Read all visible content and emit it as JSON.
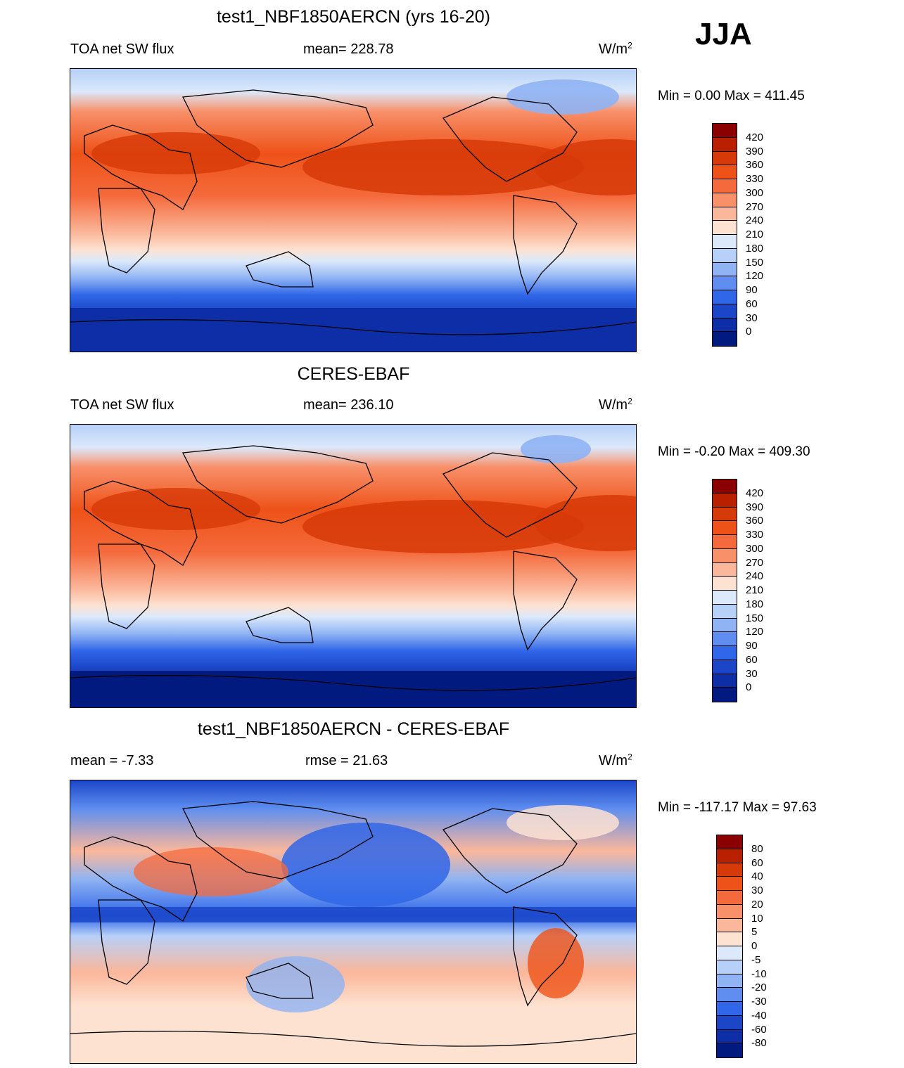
{
  "season": "JJA",
  "panels": [
    {
      "title": "test1_NBF1850AERCN (yrs 16-20)",
      "left": "TOA net SW flux",
      "center": "mean= 228.78",
      "units": "W/m",
      "units_sup": "2",
      "minmax": "Min =   0.00 Max = 411.45",
      "colorbar": {
        "labels": [
          "420",
          "390",
          "360",
          "330",
          "300",
          "270",
          "240",
          "210",
          "180",
          "150",
          "120",
          "90",
          "60",
          "30",
          "0"
        ],
        "colors": [
          "#8b0000",
          "#b82000",
          "#d63a08",
          "#ee5218",
          "#f46a3c",
          "#f8906a",
          "#fbb79a",
          "#fde2d2",
          "#dbe9fb",
          "#b7d0f8",
          "#8fb3f3",
          "#5f8ef0",
          "#3066e8",
          "#1b46c8",
          "#0d2ea6",
          "#001a80"
        ]
      }
    },
    {
      "title": "CERES-EBAF",
      "left": "TOA net SW flux",
      "center": "mean= 236.10",
      "units": "W/m",
      "units_sup": "2",
      "minmax": "Min =  -0.20 Max = 409.30",
      "colorbar": {
        "labels": [
          "420",
          "390",
          "360",
          "330",
          "300",
          "270",
          "240",
          "210",
          "180",
          "150",
          "120",
          "90",
          "60",
          "30",
          "0"
        ],
        "colors": [
          "#8b0000",
          "#b82000",
          "#d63a08",
          "#ee5218",
          "#f46a3c",
          "#f8906a",
          "#fbb79a",
          "#fde2d2",
          "#dbe9fb",
          "#b7d0f8",
          "#8fb3f3",
          "#5f8ef0",
          "#3066e8",
          "#1b46c8",
          "#0d2ea6",
          "#001a80"
        ]
      }
    },
    {
      "title": "test1_NBF1850AERCN - CERES-EBAF",
      "left": "mean =  -7.33",
      "center": "rmse =  21.63",
      "units": "W/m",
      "units_sup": "2",
      "minmax": "Min = -117.17 Max =  97.63",
      "colorbar": {
        "labels": [
          "80",
          "60",
          "40",
          "30",
          "20",
          "10",
          "5",
          "0",
          "-5",
          "-10",
          "-20",
          "-30",
          "-40",
          "-60",
          "-80"
        ],
        "colors": [
          "#8b0000",
          "#b82000",
          "#d63a08",
          "#ee5218",
          "#f46a3c",
          "#f8906a",
          "#fbb79a",
          "#fde2d2",
          "#dbe9fb",
          "#b7d0f8",
          "#8fb3f3",
          "#5f8ef0",
          "#3066e8",
          "#1b46c8",
          "#0d2ea6",
          "#001a80"
        ]
      }
    }
  ]
}
